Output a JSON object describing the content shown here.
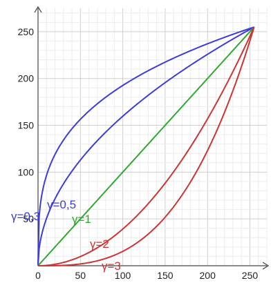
{
  "chart_data": {
    "type": "line",
    "title": "",
    "xlabel": "",
    "ylabel": "",
    "xlim": [
      0,
      270
    ],
    "ylim": [
      0,
      275
    ],
    "x_ticks": [
      0,
      50,
      100,
      150,
      200,
      250
    ],
    "y_ticks": [
      50,
      100,
      150,
      200,
      250
    ],
    "x_tick_labels": [
      "0",
      "50",
      "100",
      "150",
      "200",
      "250"
    ],
    "y_tick_labels": [
      "50",
      "100",
      "150",
      "200",
      "250"
    ],
    "grid": true,
    "x_domain": [
      0,
      255
    ],
    "series": [
      {
        "name": "γ=0,3",
        "gamma": 0.3,
        "color": "#3b3bdc"
      },
      {
        "name": "γ=0,5",
        "gamma": 0.5,
        "color": "#3b3bdc"
      },
      {
        "name": "γ=1",
        "gamma": 1,
        "color": "#2fa82f"
      },
      {
        "name": "γ=2",
        "gamma": 2,
        "color": "#cc3333"
      },
      {
        "name": "γ=3",
        "gamma": 3,
        "color": "#cc3333"
      }
    ]
  }
}
